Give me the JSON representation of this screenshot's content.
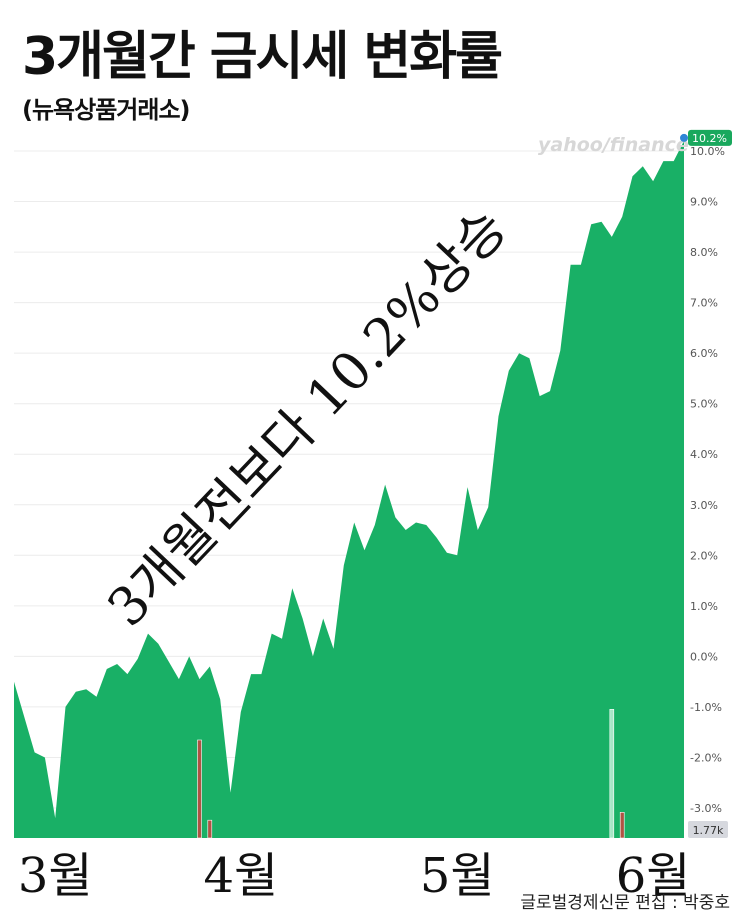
{
  "title": "3개월간 금시세 변화률",
  "subtitle": "(뉴욕상품거래소)",
  "watermark": "yahoo/finance",
  "annotation": "3개월전보다 10.2%상승",
  "credit": "글로벌경제신문 편집 : 박중호",
  "colors": {
    "area": "#19b066",
    "badge": "#19a85d",
    "dot": "#2f86d6",
    "volume_up": "#b7ecd0",
    "volume_down": "#c0493f"
  },
  "chart_data": {
    "type": "area",
    "title": "3개월간 금시세 변화률",
    "xlabel": "",
    "ylabel": "",
    "ylim": [
      -3.4,
      10.4
    ],
    "x_tick_labels": [
      "3월",
      "4월",
      "5월",
      "6월"
    ],
    "x_tick_positions": [
      4,
      22,
      43,
      62
    ],
    "y_tick_labels": [
      "10.0%",
      "9.0%",
      "8.0%",
      "7.0%",
      "6.0%",
      "5.0%",
      "4.0%",
      "3.0%",
      "2.0%",
      "1.0%",
      "0.0%",
      "-1.0%",
      "-2.0%",
      "-3.0%"
    ],
    "y_tick_values": [
      10,
      9,
      8,
      7,
      6,
      5,
      4,
      3,
      2,
      1,
      0,
      -1,
      -2,
      -3
    ],
    "series": [
      {
        "values": [
          -0.5,
          -1.2,
          -1.9,
          -2.0,
          -3.2,
          -1.0,
          -0.7,
          -0.65,
          -0.8,
          -0.25,
          -0.15,
          -0.35,
          -0.05,
          0.45,
          0.25,
          -0.1,
          -0.45,
          0.0,
          -0.45,
          -0.2,
          -0.85,
          -2.7,
          -1.1,
          -0.35,
          -0.35,
          0.45,
          0.35,
          1.35,
          0.75,
          0.0,
          0.75,
          0.15,
          1.8,
          2.65,
          2.1,
          2.6,
          3.4,
          2.75,
          2.5,
          2.65,
          2.6,
          2.35,
          2.05,
          2.0,
          3.35,
          2.5,
          2.95,
          4.75,
          5.65,
          6.0,
          5.9,
          5.15,
          5.25,
          6.05,
          7.75,
          7.75,
          8.55,
          8.6,
          8.3,
          8.7,
          9.5,
          9.7,
          9.4,
          9.8,
          9.8,
          10.2
        ]
      }
    ],
    "last_value_label": "10.2%",
    "volume_label": "1.77k",
    "volume_bars": [
      {
        "index": 18,
        "ratio": 0.99,
        "color": "down"
      },
      {
        "index": 19,
        "ratio": 0.18,
        "color": "down"
      },
      {
        "index": 58,
        "ratio": 1.3,
        "color": "up"
      },
      {
        "index": 59,
        "ratio": 0.26,
        "color": "down"
      }
    ],
    "grid": true,
    "legend": "none"
  }
}
